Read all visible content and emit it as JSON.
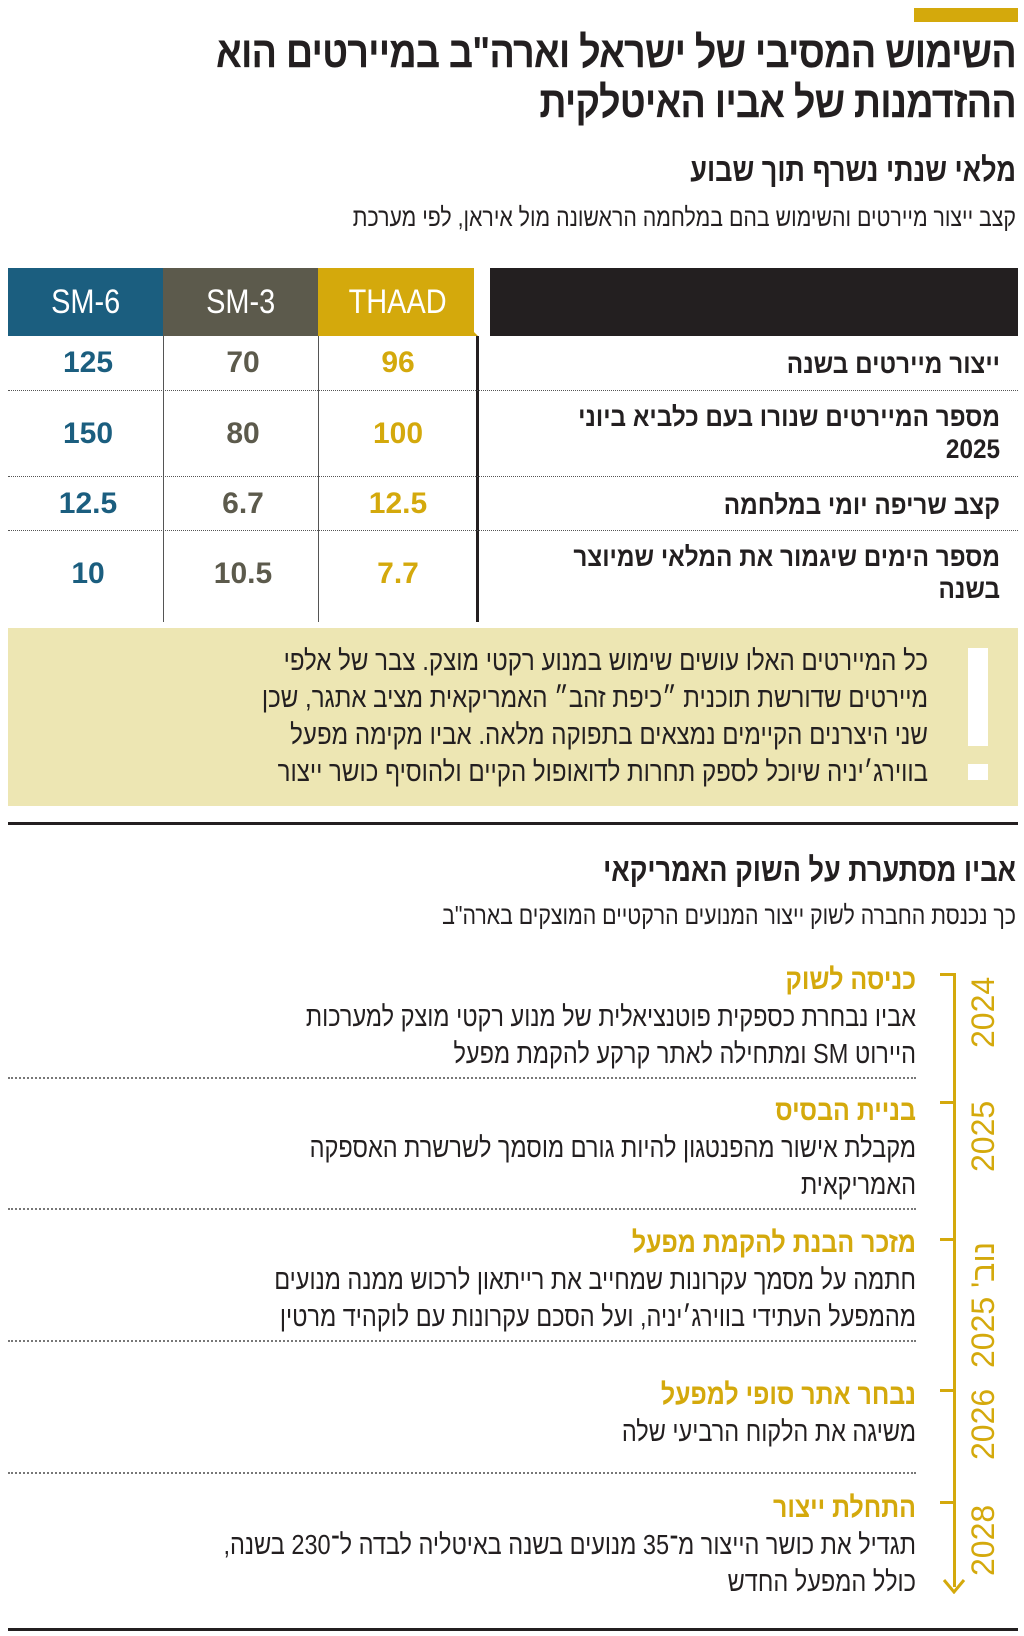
{
  "title": "השימוש המסיבי של ישראל וארה\"ב במיירטים הוא ההזדמנות של אביו האיטלקית",
  "section1": {
    "title": "מלאי שנתי נשרף תוך שבוע",
    "subtitle": "קצב ייצור מיירטים והשימוש בהם במלחמה הראשונה מול איראן, לפי מערכת",
    "columns": [
      {
        "label": "THAAD",
        "color": "#d4a90c"
      },
      {
        "label": "SM-3",
        "color": "#5c5a4c"
      },
      {
        "label": "SM-6",
        "color": "#1b5e7f"
      }
    ],
    "rows": [
      {
        "label": "ייצור מיירטים בשנה",
        "values": [
          "96",
          "70",
          "125"
        ]
      },
      {
        "label": "מספר המיירטים שנורו בעם כלביא ביוני 2025",
        "values": [
          "100",
          "80",
          "150"
        ]
      },
      {
        "label": "קצב שריפה יומי במלחמה",
        "values": [
          "12.5",
          "6.7",
          "12.5"
        ]
      },
      {
        "label": "מספר הימים שיגמור את המלאי שמיוצר בשנה",
        "values": [
          "7.7",
          "10.5",
          "10"
        ]
      }
    ],
    "note": {
      "icon": "exclamation-icon",
      "lines": [
        "כל המיירטים האלו עושים שימוש במנוע רקטי מוצק. צבר של אלפי",
        "מיירטים שדורשת תוכנית ״כיפת זהב״ האמריקאית מציב אתגר, שכן",
        "שני היצרנים הקיימים נמצאים בתפוקה מלאה. אביו מקימה מפעל",
        "בווירג׳יניה שיוכל לספק תחרות לדואופול הקיים ולהוסיף כושר ייצור"
      ]
    }
  },
  "section2": {
    "title": "אביו מסתערת על השוק האמריקאי",
    "subtitle": "כך נכנסת החברה לשוק ייצור המנועים הרקטיים המוצקים בארה\"ב",
    "timeline": [
      {
        "year": "2024",
        "title": "כניסה לשוק",
        "lines": [
          "אביו נבחרת כספקית פוטנציאלית של מנוע רקטי מוצק למערכות",
          "היירוט SM ומתחילה לאתר קרקע להקמת מפעל"
        ]
      },
      {
        "year": "2025",
        "title": "בניית הבסיס",
        "lines": [
          "מקבלת אישור מהפנטגון להיות גורם מוסמך לשרשרת האספקה",
          "האמריקאית"
        ]
      },
      {
        "year": "נוב' 2025",
        "title": "מזכר הבנת להקמת מפעל",
        "lines": [
          "חתמה על מסמך עקרונות שמחייב את רייתאון לרכוש ממנה מנועים",
          "מהמפעל העתידי בווירג׳יניה, ועל הסכם עקרונות עם לוקהיד מרטין"
        ]
      },
      {
        "year": "2026",
        "title": "נבחר אתר סופי למפעל",
        "lines": [
          "משיגה את הלקוח הרביעי שלה"
        ]
      },
      {
        "year": "2028",
        "title": "התחלת ייצור",
        "lines": [
          "תגדיל את כושר הייצור מ־35 מנועים בשנה באיטליה לבדה ל־230 בשנה,",
          "כולל המפעל החדש"
        ]
      }
    ]
  },
  "colors": {
    "accent": "#d4a90c",
    "dark": "#231f20",
    "note_bg": "#ede6b3"
  }
}
